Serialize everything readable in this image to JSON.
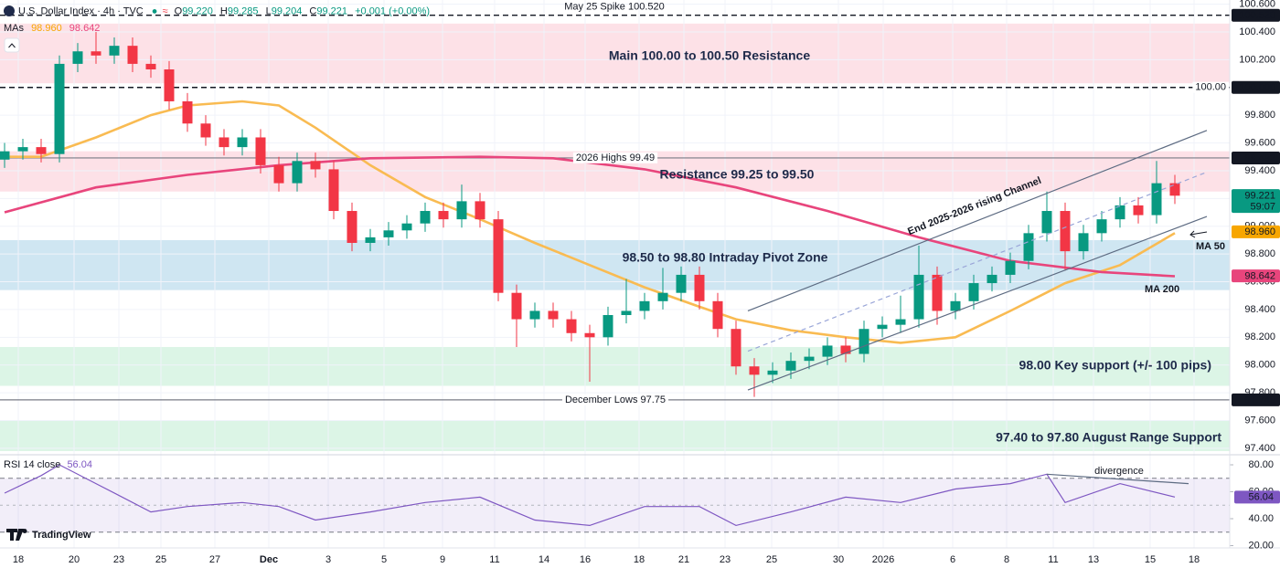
{
  "header": {
    "symbol": "U.S. Dollar Index · 4h · TVC",
    "ohlc": [
      {
        "k": "O",
        "v": "99.220"
      },
      {
        "k": "H",
        "v": "99.285"
      },
      {
        "k": "L",
        "v": "99.204"
      },
      {
        "k": "C",
        "v": "99.221"
      }
    ],
    "change": "+0.001 (+0.00%)",
    "mas_label": "MAs",
    "mas_values": [
      "98.960",
      "98.642"
    ],
    "rsi_label": "RSI 14 close",
    "rsi_value": "56.04",
    "brand": "TradingView"
  },
  "chart_data": {
    "type": "candlestick",
    "up_color": "#089981",
    "down_color": "#f23645",
    "open": [
      99.48,
      99.54,
      99.57,
      99.52,
      100.17,
      100.26,
      100.23,
      100.3,
      100.17,
      100.13,
      99.9,
      99.74,
      99.64,
      99.57,
      99.64,
      99.44,
      99.31,
      99.47,
      99.41,
      99.11,
      98.88,
      98.92,
      98.97,
      99.02,
      99.11,
      99.05,
      99.18,
      99.05,
      98.52,
      98.33,
      98.39,
      98.33,
      98.23,
      98.2,
      98.36,
      98.39,
      98.46,
      98.52,
      98.65,
      98.46,
      98.26,
      97.99,
      97.93,
      97.96,
      98.03,
      98.06,
      98.14,
      98.08,
      98.26,
      98.29,
      98.33,
      98.65,
      98.39,
      98.46,
      98.59,
      98.65,
      98.75,
      98.95,
      99.11,
      98.82,
      98.95,
      99.05,
      99.15,
      99.08,
      99.31
    ],
    "high": [
      99.6,
      99.63,
      99.63,
      100.23,
      100.32,
      100.4,
      100.36,
      100.36,
      100.23,
      100.19,
      99.96,
      99.8,
      99.7,
      99.7,
      99.7,
      99.5,
      99.53,
      99.53,
      99.47,
      99.17,
      98.98,
      99.03,
      99.08,
      99.17,
      99.17,
      99.3,
      99.24,
      99.11,
      98.58,
      98.45,
      98.45,
      98.39,
      98.29,
      98.42,
      98.62,
      98.52,
      98.7,
      98.71,
      98.71,
      98.52,
      98.32,
      98.05,
      98.02,
      98.09,
      98.12,
      98.2,
      98.2,
      98.32,
      98.35,
      98.5,
      98.86,
      98.71,
      98.52,
      98.65,
      98.71,
      98.81,
      99.01,
      99.25,
      99.17,
      99.01,
      99.11,
      99.21,
      99.21,
      99.47,
      99.37
    ],
    "low": [
      99.42,
      99.48,
      99.46,
      99.46,
      100.11,
      100.17,
      100.17,
      100.11,
      100.07,
      99.84,
      99.68,
      99.58,
      99.51,
      99.51,
      99.38,
      99.25,
      99.25,
      99.35,
      99.05,
      98.82,
      98.82,
      98.86,
      98.91,
      98.96,
      98.99,
      98.99,
      98.99,
      98.46,
      98.13,
      98.27,
      98.27,
      98.17,
      97.88,
      98.14,
      98.3,
      98.33,
      98.4,
      98.46,
      98.4,
      98.2,
      97.93,
      97.77,
      97.87,
      97.9,
      97.97,
      98.0,
      98.02,
      98.02,
      98.2,
      98.23,
      98.27,
      98.29,
      98.33,
      98.4,
      98.53,
      98.59,
      98.69,
      98.89,
      98.68,
      98.76,
      98.89,
      98.99,
      99.02,
      99.02,
      99.16
    ],
    "close": [
      99.54,
      99.57,
      99.52,
      100.17,
      100.26,
      100.23,
      100.3,
      100.17,
      100.13,
      99.9,
      99.74,
      99.64,
      99.57,
      99.64,
      99.44,
      99.31,
      99.47,
      99.41,
      99.11,
      98.88,
      98.92,
      98.97,
      99.02,
      99.11,
      99.05,
      99.18,
      99.05,
      98.52,
      98.33,
      98.39,
      98.33,
      98.23,
      98.2,
      98.36,
      98.39,
      98.46,
      98.52,
      98.65,
      98.46,
      98.26,
      97.99,
      97.93,
      97.96,
      98.03,
      98.06,
      98.14,
      98.08,
      98.26,
      98.29,
      98.33,
      98.65,
      98.39,
      98.46,
      98.59,
      98.65,
      98.75,
      98.95,
      99.11,
      98.82,
      98.95,
      99.05,
      99.15,
      99.08,
      99.31,
      99.22
    ],
    "xlim": [
      -0.25,
      67
    ],
    "xticks": [
      {
        "value": 0.75,
        "label": "18"
      },
      {
        "value": 3.8,
        "label": "20"
      },
      {
        "value": 6.25,
        "label": "23"
      },
      {
        "value": 8.55,
        "label": "25"
      },
      {
        "value": 11.5,
        "label": "27"
      },
      {
        "value": 14.45,
        "label": "Dec"
      },
      {
        "value": 17.7,
        "label": "3"
      },
      {
        "value": 20.75,
        "label": "5"
      },
      {
        "value": 23.95,
        "label": "9"
      },
      {
        "value": 26.8,
        "label": "11"
      },
      {
        "value": 29.5,
        "label": "14"
      },
      {
        "value": 31.75,
        "label": "16"
      },
      {
        "value": 34.7,
        "label": "18"
      },
      {
        "value": 37.15,
        "label": "21"
      },
      {
        "value": 39.4,
        "label": "23"
      },
      {
        "value": 41.95,
        "label": "25"
      },
      {
        "value": 45.6,
        "label": "30"
      },
      {
        "value": 48.05,
        "label": "2026"
      },
      {
        "value": 51.85,
        "label": "6"
      },
      {
        "value": 54.8,
        "label": "8"
      },
      {
        "value": 57.35,
        "label": "11"
      },
      {
        "value": 59.55,
        "label": "13"
      },
      {
        "value": 62.65,
        "label": "15"
      },
      {
        "value": 65.05,
        "label": "18"
      }
    ],
    "ylim": [
      97.36,
      100.63
    ],
    "yticks": [
      {
        "value": 97.4,
        "label": "97.400"
      },
      {
        "value": 97.6,
        "label": "97.600"
      },
      {
        "value": 97.8,
        "label": "97.800"
      },
      {
        "value": 98.0,
        "label": "98.000"
      },
      {
        "value": 98.2,
        "label": "98.200"
      },
      {
        "value": 98.4,
        "label": "98.400"
      },
      {
        "value": 98.6,
        "label": "98.600"
      },
      {
        "value": 98.8,
        "label": "98.800"
      },
      {
        "value": 99.0,
        "label": "99.000"
      },
      {
        "value": 99.2,
        "label": "99.200"
      },
      {
        "value": 99.4,
        "label": "99.400"
      },
      {
        "value": 99.6,
        "label": "99.600"
      },
      {
        "value": 99.8,
        "label": "99.800"
      },
      {
        "value": 100.0,
        "label": "100.000"
      },
      {
        "value": 100.2,
        "label": "100.200"
      },
      {
        "value": 100.4,
        "label": "100.400"
      },
      {
        "value": 100.6,
        "label": "100.600"
      }
    ],
    "grid": true,
    "lines": [
      {
        "name": "MA 50",
        "color": "#f9bb52",
        "x": [
          0,
          2,
          5,
          8,
          10,
          13,
          15,
          17,
          20,
          23,
          26,
          29,
          32,
          35,
          38,
          40,
          43,
          46,
          49,
          52,
          55,
          58,
          61,
          64
        ],
        "values": [
          99.5,
          99.5,
          99.64,
          99.8,
          99.87,
          99.9,
          99.87,
          99.71,
          99.44,
          99.21,
          99.05,
          98.88,
          98.72,
          98.56,
          98.42,
          98.33,
          98.25,
          98.2,
          98.16,
          98.2,
          98.39,
          98.59,
          98.72,
          98.95
        ]
      },
      {
        "name": "MA 200",
        "color": "#e8457c",
        "x": [
          0,
          5,
          10,
          15,
          20,
          26,
          30,
          35,
          40,
          45,
          50,
          55,
          60,
          64
        ],
        "values": [
          99.1,
          99.28,
          99.37,
          99.44,
          99.49,
          99.5,
          99.49,
          99.41,
          99.28,
          99.11,
          98.92,
          98.75,
          98.67,
          98.64
        ]
      }
    ],
    "zones": [
      {
        "label": "Main 100.00 to 100.50 Resistance",
        "range": [
          100.03,
          100.46
        ],
        "color": "#fde1e7"
      },
      {
        "label": "Resistance 99.25 to 99.50",
        "range": [
          99.25,
          99.54
        ],
        "color": "#fde1e7"
      },
      {
        "label": "98.50 to 98.80 Intraday Pivot Zone",
        "range": [
          98.54,
          98.9
        ],
        "color": "#cfe6f2"
      },
      {
        "label": "98.00 Key support (+/- 100 pips)",
        "range": [
          97.85,
          98.13
        ],
        "color": "#dcf5e6"
      },
      {
        "label": "97.40 to 97.80 August Range Support",
        "range": [
          97.38,
          97.6
        ],
        "color": "#dcf5e6"
      }
    ],
    "levels": [
      {
        "label": "May 25 Spike 100.520",
        "value": 100.52,
        "axis_label": "100.520",
        "dashed": true
      },
      {
        "label": "100.00",
        "value": 100.0,
        "axis_label": "100.000",
        "dashed": true
      },
      {
        "label": "2026 Highs 99.49",
        "value": 99.492,
        "axis_label": "99.492",
        "dashed": false
      },
      {
        "label": "December Lows 97.75",
        "value": 97.749,
        "axis_label": "97.749",
        "dashed": false
      }
    ],
    "channel": {
      "label": "End 2025-2026 rising Channel",
      "color": "#2f6bf0",
      "x": [
        40.65,
        65.75
      ],
      "upper": [
        98.39,
        99.69
      ],
      "mid": [
        98.1,
        99.39
      ],
      "lower": [
        97.82,
        99.07
      ]
    },
    "price_labels": [
      {
        "value": 99.221,
        "label": "99.221",
        "sub": "59:07",
        "color": "#089981"
      },
      {
        "value": 98.96,
        "label": "98.960",
        "color": "#f7a600"
      },
      {
        "value": 98.642,
        "label": "98.642",
        "color": "#e8457c"
      }
    ],
    "rsi": {
      "color": "#7e57c2",
      "x": [
        0,
        2,
        3,
        5,
        8,
        10,
        13,
        15,
        17,
        20,
        23,
        26,
        29,
        32,
        35,
        38,
        40,
        43,
        46,
        49,
        52,
        55,
        57,
        58,
        61,
        64
      ],
      "values": [
        59,
        72,
        80,
        66,
        45,
        49,
        52,
        49,
        39,
        45,
        52,
        56,
        39,
        35,
        49,
        49,
        35,
        45,
        56,
        52,
        62,
        66,
        73,
        52,
        66,
        56.04
      ],
      "ylim": [
        18.3,
        86.1
      ],
      "yticks": [
        {
          "value": 20,
          "label": "20.00"
        },
        {
          "value": 40,
          "label": "40.00"
        },
        {
          "value": 60,
          "label": "60.00"
        },
        {
          "value": 80,
          "label": "80.00"
        }
      ],
      "bands": [
        30,
        70
      ],
      "middle": 50,
      "last_label": "56.04",
      "divergence": {
        "label": "divergence",
        "x": [
          57,
          64.75
        ],
        "values": [
          73,
          66
        ]
      }
    }
  }
}
